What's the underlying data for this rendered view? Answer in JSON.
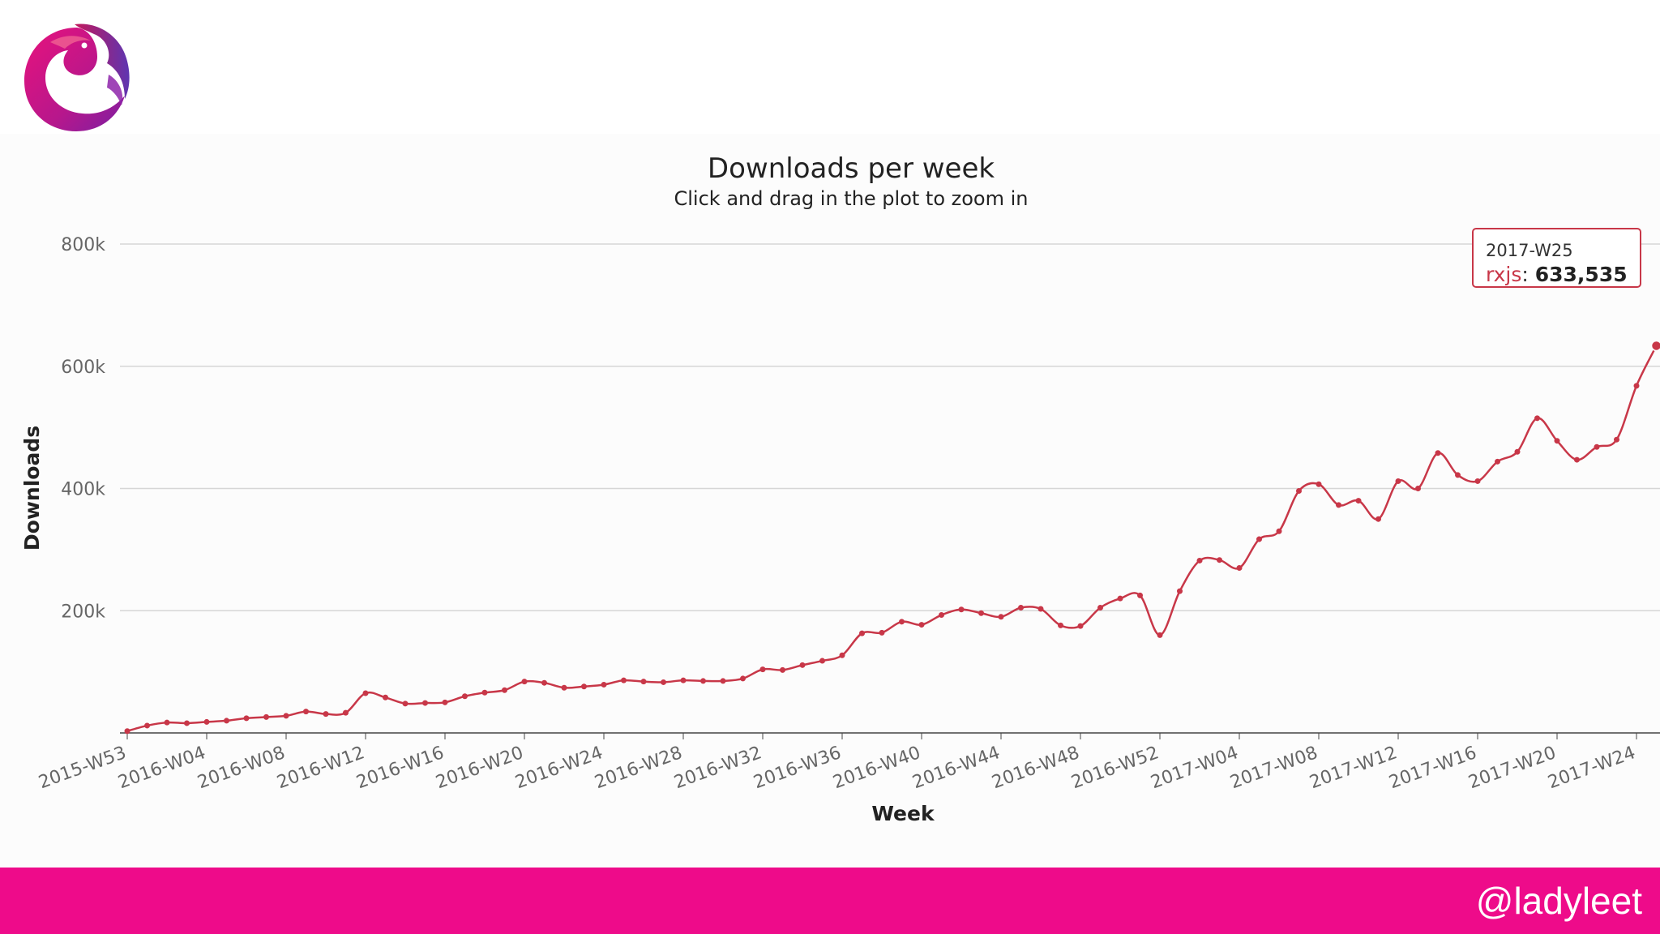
{
  "brand": {
    "logo_name": "rxjs-logo",
    "accent": "#ee0b8a"
  },
  "footer": {
    "handle": "@ladyleet"
  },
  "tooltip": {
    "week": "2017-W25",
    "series": "rxjs",
    "value_text": "633,535"
  },
  "chart_data": {
    "type": "line",
    "title": "Downloads per week",
    "subtitle": "Click and drag in the plot to zoom in",
    "xlabel": "Week",
    "ylabel": "Downloads",
    "ylim": [
      0,
      800000
    ],
    "yticks": [
      200000,
      400000,
      600000,
      800000
    ],
    "ytick_labels": [
      "200k",
      "400k",
      "600k",
      "800k"
    ],
    "grid": true,
    "line_color": "#c83748",
    "categories": [
      "2015-W53",
      "2016-W01",
      "2016-W02",
      "2016-W03",
      "2016-W04",
      "2016-W05",
      "2016-W06",
      "2016-W07",
      "2016-W08",
      "2016-W09",
      "2016-W10",
      "2016-W11",
      "2016-W12",
      "2016-W13",
      "2016-W14",
      "2016-W15",
      "2016-W16",
      "2016-W17",
      "2016-W18",
      "2016-W19",
      "2016-W20",
      "2016-W21",
      "2016-W22",
      "2016-W23",
      "2016-W24",
      "2016-W25",
      "2016-W26",
      "2016-W27",
      "2016-W28",
      "2016-W29",
      "2016-W30",
      "2016-W31",
      "2016-W32",
      "2016-W33",
      "2016-W34",
      "2016-W35",
      "2016-W36",
      "2016-W37",
      "2016-W38",
      "2016-W39",
      "2016-W40",
      "2016-W41",
      "2016-W42",
      "2016-W43",
      "2016-W44",
      "2016-W45",
      "2016-W46",
      "2016-W47",
      "2016-W48",
      "2016-W49",
      "2016-W50",
      "2016-W51",
      "2016-W52",
      "2017-W01",
      "2017-W02",
      "2017-W03",
      "2017-W04",
      "2017-W05",
      "2017-W06",
      "2017-W07",
      "2017-W08",
      "2017-W09",
      "2017-W10",
      "2017-W11",
      "2017-W12",
      "2017-W13",
      "2017-W14",
      "2017-W15",
      "2017-W16",
      "2017-W17",
      "2017-W18",
      "2017-W19",
      "2017-W20",
      "2017-W21",
      "2017-W22",
      "2017-W23",
      "2017-W24",
      "2017-W25"
    ],
    "xtick_labels": [
      "2015-W53",
      "2016-W04",
      "2016-W08",
      "2016-W12",
      "2016-W16",
      "2016-W20",
      "2016-W24",
      "2016-W28",
      "2016-W32",
      "2016-W36",
      "2016-W40",
      "2016-W44",
      "2016-W48",
      "2016-W52",
      "2017-W04",
      "2017-W08",
      "2017-W12",
      "2017-W16",
      "2017-W20",
      "2017-W24"
    ],
    "series": [
      {
        "name": "rxjs",
        "values": [
          3000,
          12000,
          17000,
          16000,
          18000,
          20000,
          24000,
          26000,
          28000,
          35000,
          31000,
          33000,
          65000,
          58000,
          48000,
          49000,
          50000,
          60000,
          66000,
          70000,
          84000,
          82000,
          74000,
          76000,
          79000,
          86000,
          84000,
          83000,
          86000,
          85000,
          85000,
          89000,
          104000,
          103000,
          111000,
          118000,
          127000,
          163000,
          164000,
          182000,
          177000,
          193000,
          202000,
          196000,
          190000,
          205000,
          203000,
          176000,
          175000,
          205000,
          220000,
          225000,
          160000,
          232000,
          282000,
          283000,
          270000,
          317000,
          330000,
          396000,
          407000,
          373000,
          380000,
          350000,
          412000,
          400000,
          458000,
          422000,
          412000,
          444000,
          460000,
          515000,
          478000,
          447000,
          468000,
          480000,
          568000,
          633535
        ]
      }
    ]
  }
}
